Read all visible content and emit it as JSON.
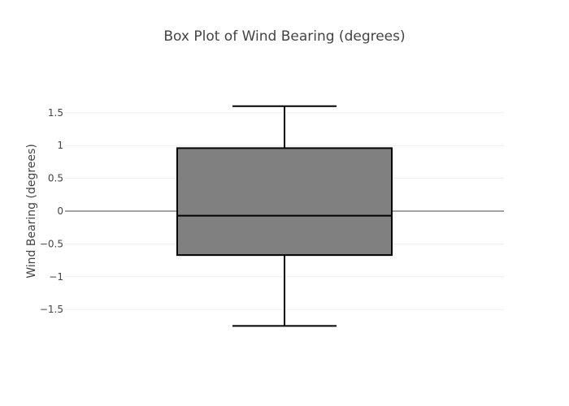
{
  "chart_data": {
    "type": "box",
    "title": "Box Plot of Wind Bearing (degrees)",
    "ylabel": "Wind Bearing (degrees)",
    "xlabel": "",
    "ylim": [
      -1.98,
      1.98
    ],
    "yticks": [
      -1.5,
      -1,
      -0.5,
      0,
      0.5,
      1,
      1.5
    ],
    "ytick_labels": [
      "−1.5",
      "−1",
      "−0.5",
      "0",
      "0.5",
      "1",
      "1.5"
    ],
    "grid": true,
    "zeroline": true,
    "box": {
      "lower_whisker": -1.75,
      "q1": -0.67,
      "median": -0.07,
      "q3": 0.96,
      "upper_whisker": 1.6
    },
    "colors": {
      "box_fill": "#808080",
      "box_line": "#000000",
      "grid": "#eeeeee",
      "zero_line": "#444444",
      "text": "#444444"
    }
  }
}
